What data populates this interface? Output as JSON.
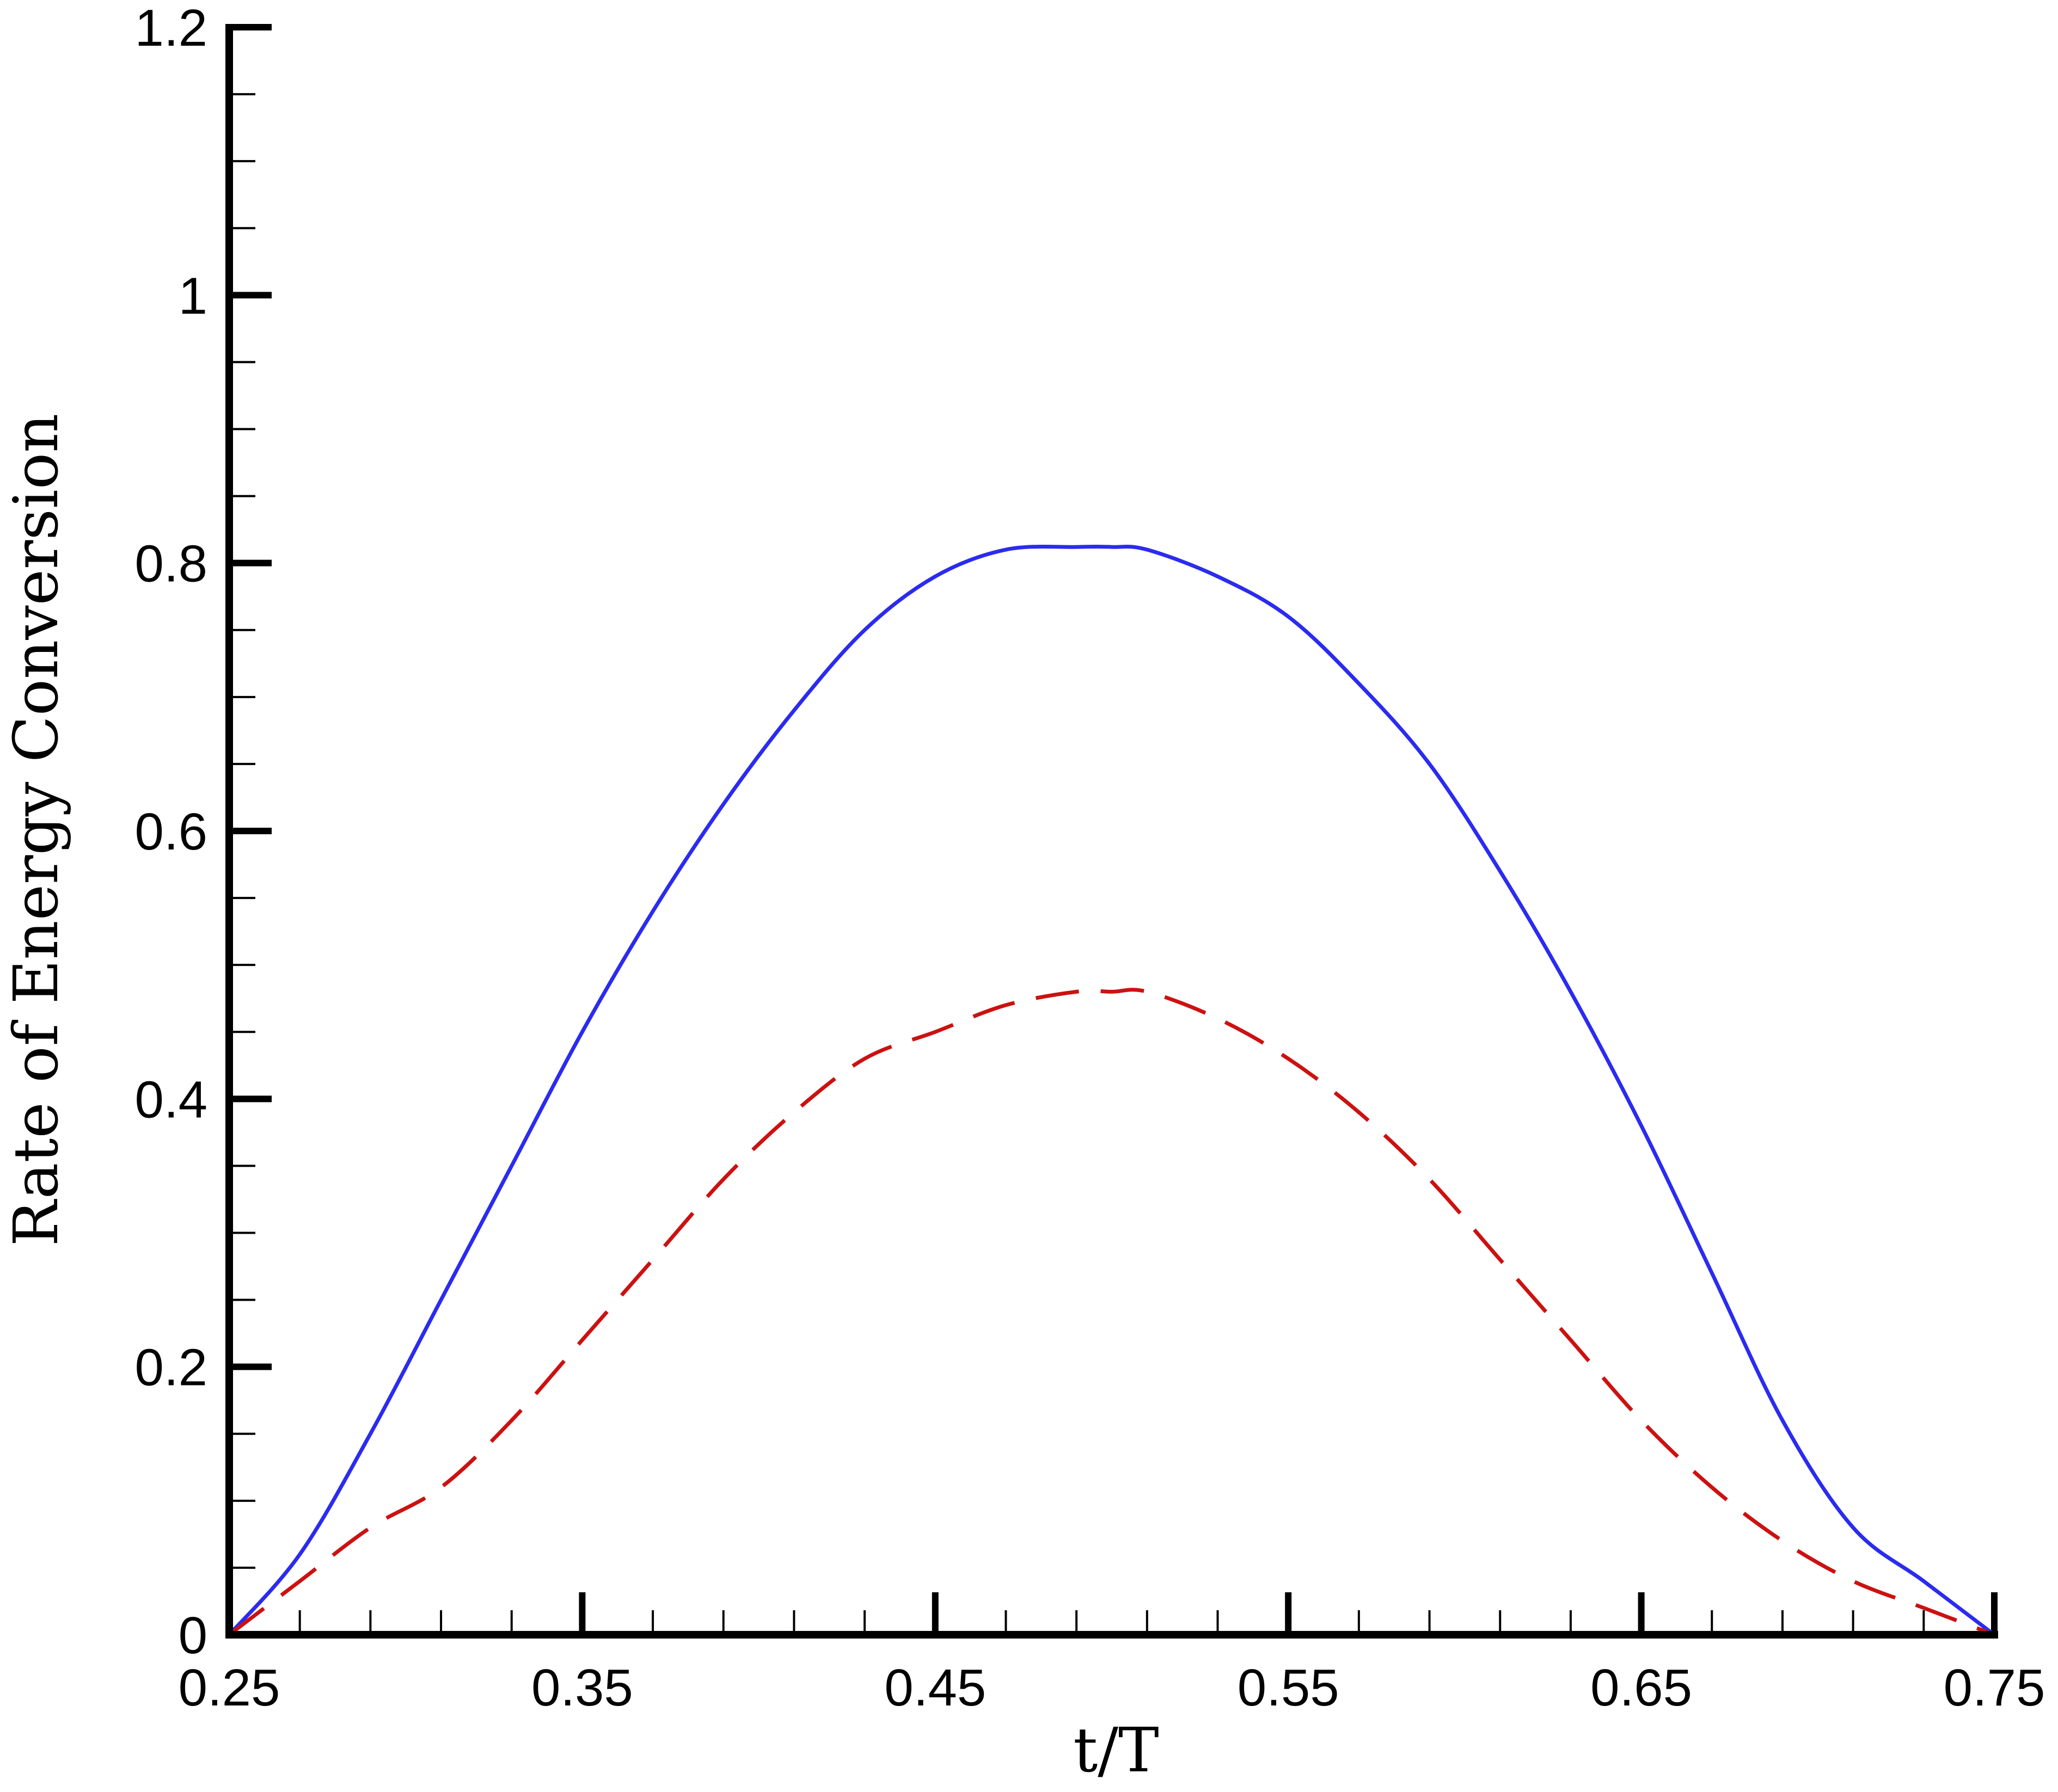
{
  "chart_data": {
    "type": "line",
    "title": "",
    "xlabel": "t/T",
    "ylabel": "Rate of Energy Conversion",
    "xlim": [
      0.25,
      0.75
    ],
    "ylim": [
      0,
      1.2
    ],
    "x_ticks": [
      "0.25",
      "0.35",
      "0.45",
      "0.55",
      "0.65",
      "0.75"
    ],
    "y_ticks": [
      "0",
      "0.2",
      "0.4",
      "0.6",
      "0.8",
      "1",
      "1.2"
    ],
    "grid": false,
    "legend": "none",
    "series": [
      {
        "style": "solid",
        "color": "#2b2bf0",
        "x": [
          0.25,
          0.27,
          0.29,
          0.31,
          0.33,
          0.35,
          0.37,
          0.39,
          0.41,
          0.43,
          0.45,
          0.47,
          0.49,
          0.5,
          0.51,
          0.53,
          0.55,
          0.57,
          0.59,
          0.61,
          0.63,
          0.65,
          0.67,
          0.69,
          0.71,
          0.73,
          0.75
        ],
        "y": [
          0.0,
          0.06,
          0.15,
          0.25,
          0.35,
          0.45,
          0.54,
          0.62,
          0.69,
          0.75,
          0.79,
          0.81,
          0.812,
          0.812,
          0.81,
          0.79,
          0.76,
          0.71,
          0.65,
          0.57,
          0.48,
          0.38,
          0.27,
          0.16,
          0.08,
          0.04,
          0.0
        ]
      },
      {
        "style": "dashed",
        "color": "#cc1111",
        "x": [
          0.25,
          0.27,
          0.29,
          0.31,
          0.33,
          0.35,
          0.37,
          0.39,
          0.41,
          0.43,
          0.45,
          0.47,
          0.49,
          0.5,
          0.51,
          0.53,
          0.55,
          0.57,
          0.59,
          0.61,
          0.63,
          0.65,
          0.67,
          0.69,
          0.71,
          0.73,
          0.75
        ],
        "y": [
          0.0,
          0.04,
          0.08,
          0.11,
          0.16,
          0.22,
          0.28,
          0.34,
          0.39,
          0.43,
          0.45,
          0.47,
          0.48,
          0.48,
          0.48,
          0.46,
          0.43,
          0.39,
          0.34,
          0.28,
          0.22,
          0.16,
          0.11,
          0.07,
          0.04,
          0.02,
          0.0
        ]
      }
    ]
  }
}
